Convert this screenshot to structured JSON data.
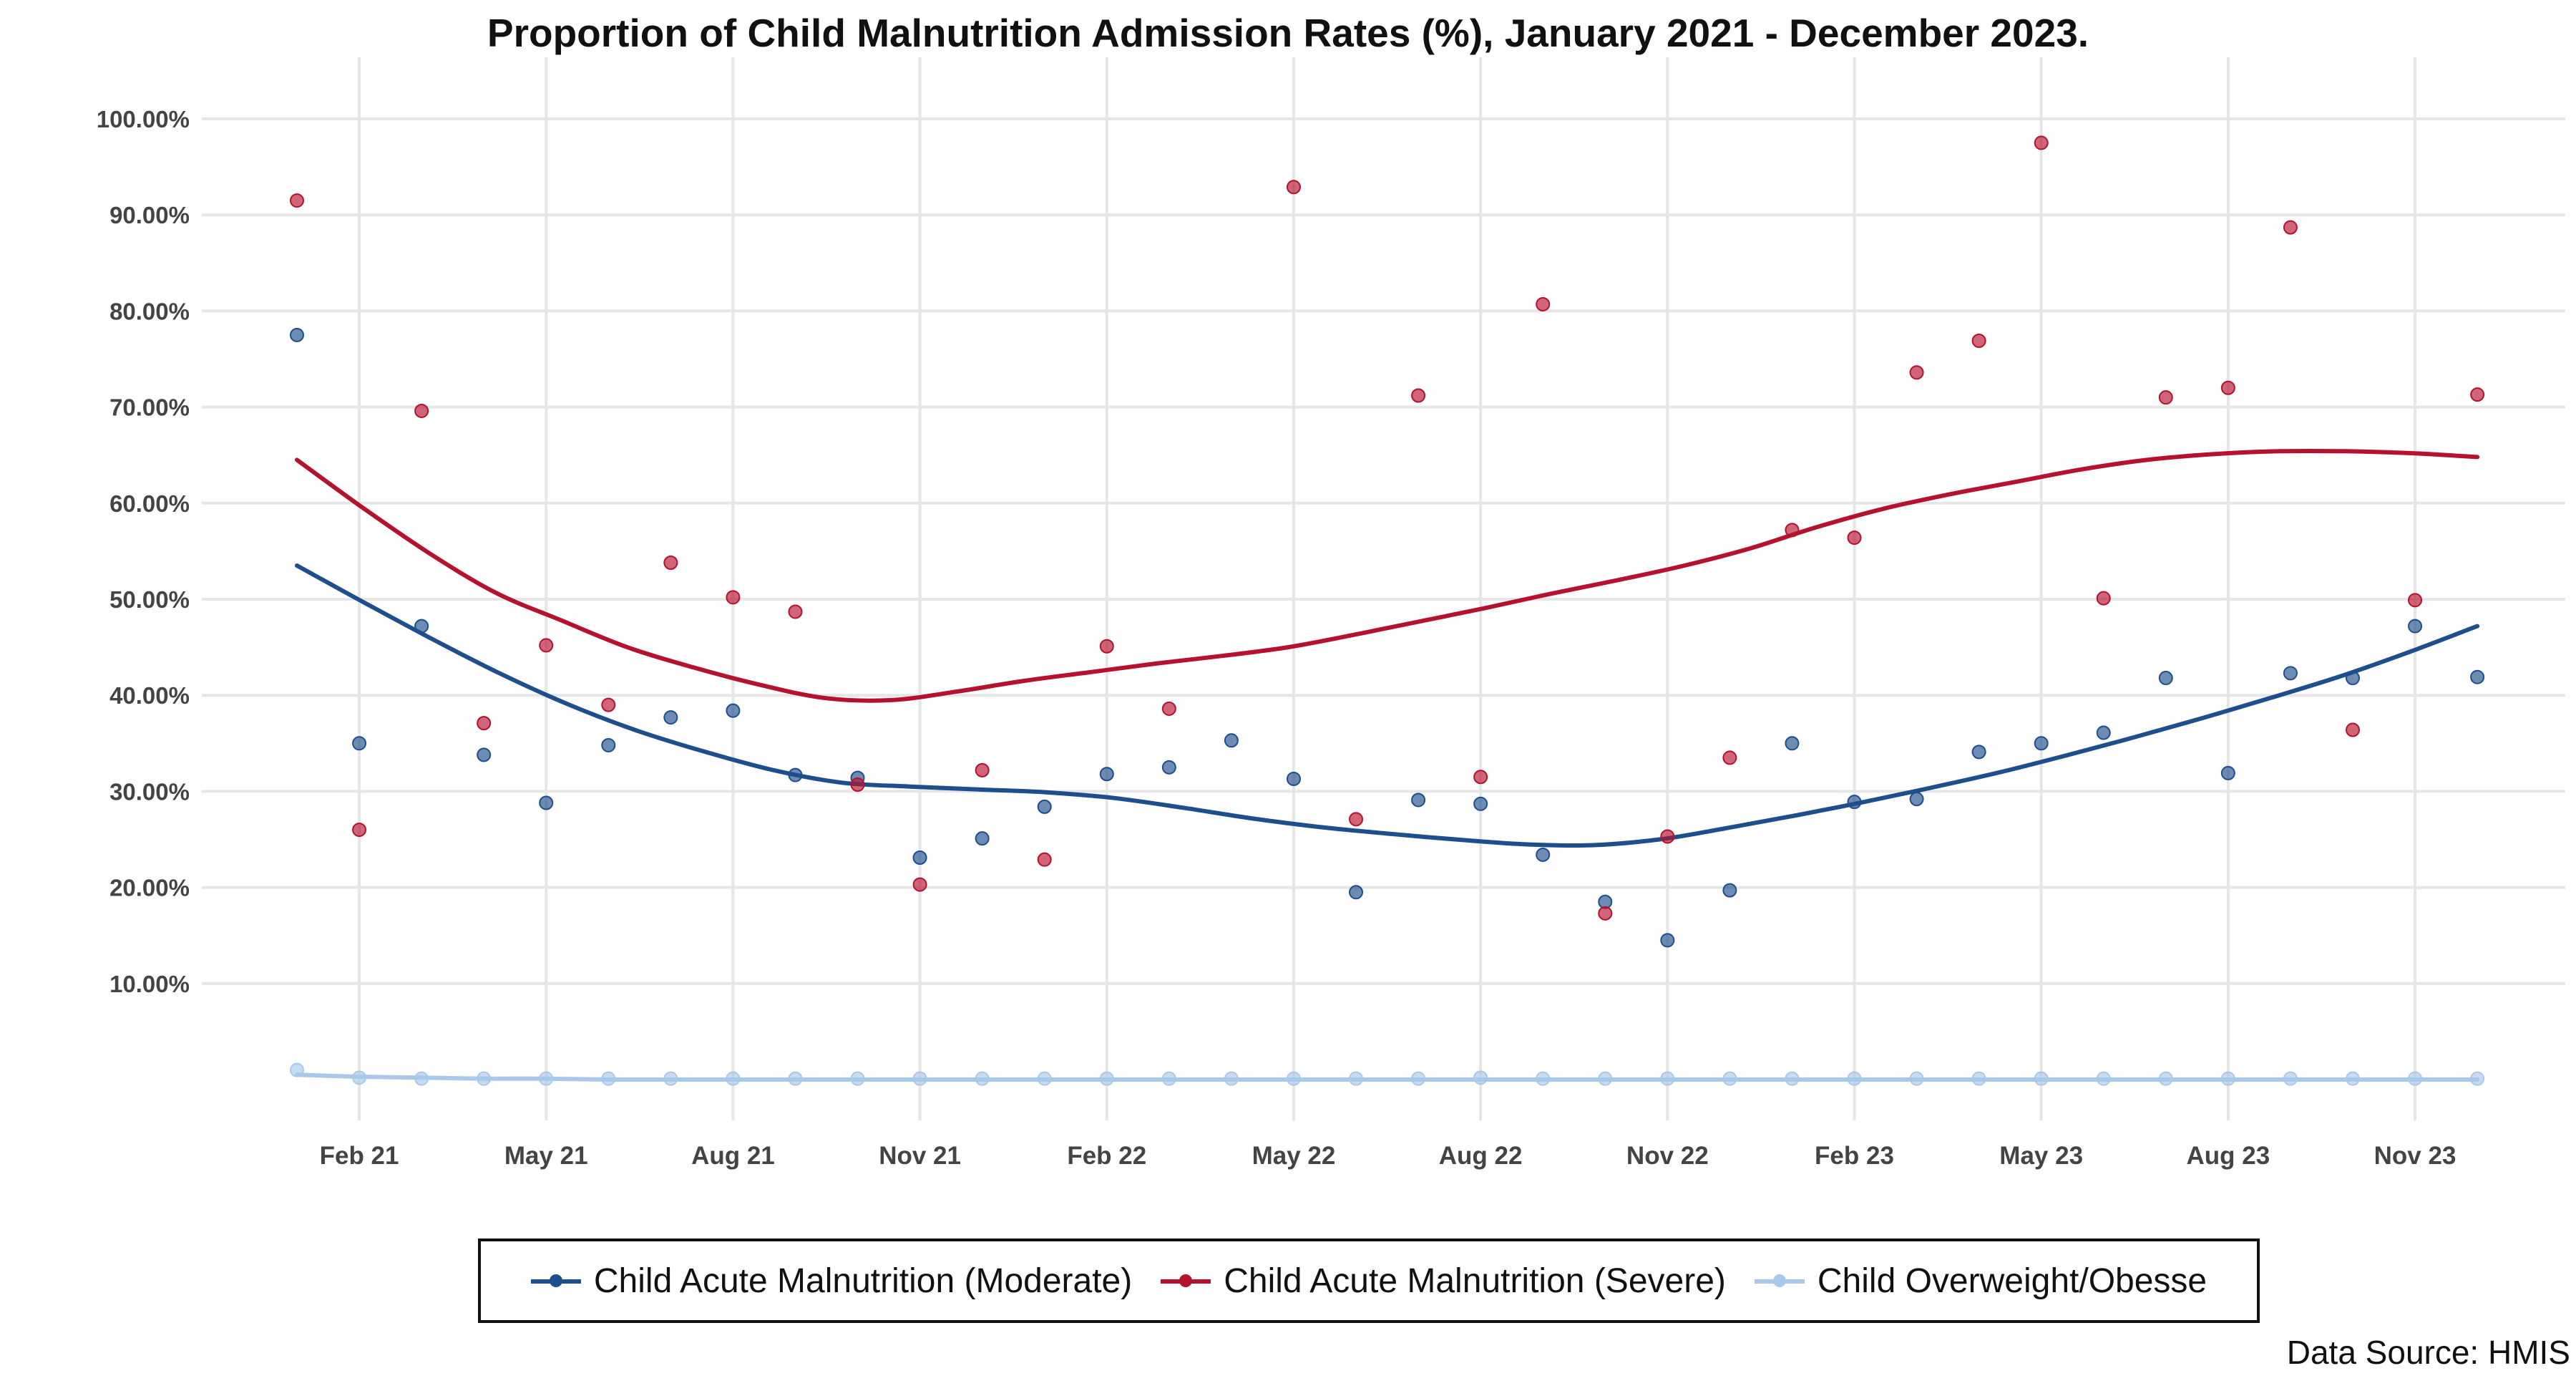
{
  "title": "Proportion of Child Malnutrition Admission Rates (%), January 2021 - December 2023.",
  "source_note": "Data Source: HMIS",
  "colors": {
    "moderate": "#1f4e8c",
    "severe": "#b5122e",
    "overweight": "#a9c8ea",
    "grid": "#e6e6e6"
  },
  "chart_data": {
    "type": "scatter",
    "title": "Proportion of Child Malnutrition Admission Rates (%), January 2021 - December 2023.",
    "xlabel": "",
    "ylabel": "",
    "ylim": [
      -10,
      103
    ],
    "y_ticks": [
      10,
      20,
      30,
      40,
      50,
      60,
      70,
      80,
      90,
      100
    ],
    "y_tick_labels": [
      "10.00%",
      "20.00%",
      "30.00%",
      "40.00%",
      "50.00%",
      "60.00%",
      "70.00%",
      "80.00%",
      "90.00%",
      "100.00%"
    ],
    "x_tick_labels": [
      "Feb 21",
      "May 21",
      "Aug 21",
      "Nov 21",
      "Feb 22",
      "May 22",
      "Aug 22",
      "Nov 22",
      "Feb 23",
      "May 23",
      "Aug 23",
      "Nov 23"
    ],
    "x_tick_months": [
      "2021-02",
      "2021-05",
      "2021-08",
      "2021-11",
      "2022-02",
      "2022-05",
      "2022-08",
      "2022-11",
      "2023-02",
      "2023-05",
      "2023-08",
      "2023-11"
    ],
    "x": [
      "2021-01",
      "2021-02",
      "2021-03",
      "2021-04",
      "2021-05",
      "2021-06",
      "2021-07",
      "2021-08",
      "2021-09",
      "2021-10",
      "2021-11",
      "2021-12",
      "2022-01",
      "2022-02",
      "2022-03",
      "2022-04",
      "2022-05",
      "2022-06",
      "2022-07",
      "2022-08",
      "2022-09",
      "2022-10",
      "2022-11",
      "2022-12",
      "2023-01",
      "2023-02",
      "2023-03",
      "2023-04",
      "2023-05",
      "2023-06",
      "2023-07",
      "2023-08",
      "2023-09",
      "2023-10",
      "2023-11",
      "2023-12"
    ],
    "grid": true,
    "legend_position": "bottom",
    "series": [
      {
        "name": "Child Acute Malnutrition (Moderate)",
        "color": "#1f4e8c",
        "values": [
          77.5,
          35.0,
          47.2,
          33.8,
          28.8,
          34.8,
          37.7,
          38.4,
          31.7,
          31.4,
          23.1,
          25.1,
          28.4,
          31.8,
          32.5,
          35.3,
          31.3,
          19.5,
          29.1,
          28.7,
          23.4,
          18.5,
          14.5,
          19.7,
          35.0,
          28.9,
          29.2,
          34.1,
          35.0,
          36.1,
          41.8,
          31.9,
          42.3,
          41.8,
          47.2,
          41.9
        ],
        "trend": [
          53.5,
          49.6,
          45.8,
          42.2,
          39.0,
          36.3,
          34.1,
          32.2,
          30.9,
          30.5,
          30.2,
          29.9,
          29.3,
          28.3,
          27.2,
          26.3,
          25.6,
          25.0,
          24.5,
          24.4,
          25.0,
          26.2,
          27.5,
          28.9,
          30.4,
          32.0,
          33.8,
          35.7,
          37.7,
          39.8,
          42.0,
          44.5,
          47.2
        ]
      },
      {
        "name": "Child Acute Malnutrition (Severe)",
        "color": "#b5122e",
        "values": [
          91.5,
          26.0,
          69.6,
          37.1,
          45.2,
          39.0,
          53.8,
          50.2,
          48.7,
          30.7,
          20.3,
          32.2,
          22.9,
          45.1,
          38.6,
          null,
          92.9,
          27.1,
          71.2,
          31.5,
          80.7,
          17.3,
          25.3,
          33.5,
          57.2,
          56.4,
          73.6,
          76.9,
          97.5,
          50.1,
          71.0,
          72.0,
          88.7,
          36.4,
          49.9,
          71.3
        ],
        "trend": [
          64.5,
          59.5,
          54.8,
          50.7,
          47.8,
          45.0,
          42.9,
          41.1,
          39.7,
          39.5,
          40.4,
          41.5,
          42.4,
          43.3,
          44.1,
          45.0,
          46.3,
          47.7,
          49.1,
          50.6,
          52.0,
          53.5,
          55.3,
          57.5,
          59.4,
          60.9,
          62.2,
          63.5,
          64.5,
          65.1,
          65.4,
          65.4,
          65.2,
          64.8
        ]
      },
      {
        "name": "Child Overweight/Obesse",
        "color": "#a9c8ea",
        "values": [
          1.0,
          0.2,
          0.1,
          0.1,
          0.1,
          0.1,
          0.1,
          0.1,
          0.1,
          0.1,
          0.1,
          0.1,
          0.1,
          0.1,
          0.1,
          0.1,
          0.1,
          0.1,
          0.1,
          0.2,
          0.1,
          0.1,
          0.1,
          0.1,
          0.1,
          0.1,
          0.1,
          0.1,
          0.1,
          0.1,
          0.1,
          0.1,
          0.1,
          0.1,
          0.1,
          0.1
        ],
        "trend": [
          0.5,
          0.3,
          0.2,
          0.1,
          0.1,
          0.0,
          0.0,
          0.0,
          0.0,
          0.0,
          0.0,
          0.0,
          0.0,
          0.0,
          0.0,
          0.0,
          0.0,
          0.0,
          0.0,
          0.0,
          0.0,
          0.0,
          0.0,
          0.0,
          0.0,
          0.0,
          0.0,
          0.0,
          0.0,
          0.0,
          0.0,
          0.0,
          0.0,
          0.0,
          0.0,
          0.0
        ]
      }
    ]
  }
}
